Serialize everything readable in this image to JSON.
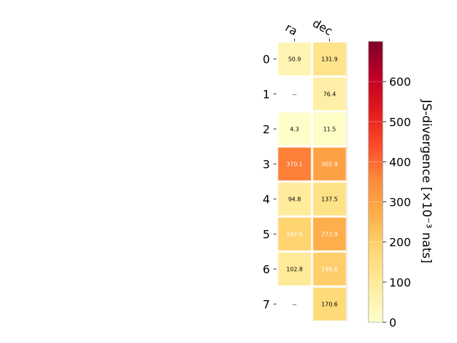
{
  "chart_data": {
    "type": "heatmap",
    "x_categories": [
      "ra",
      "dec"
    ],
    "y_categories": [
      "0",
      "1",
      "2",
      "3",
      "4",
      "5",
      "6",
      "7"
    ],
    "values": [
      [
        50.9,
        131.9
      ],
      [
        null,
        76.4
      ],
      [
        4.3,
        11.5
      ],
      [
        370.1,
        302.9
      ],
      [
        94.8,
        137.5
      ],
      [
        187.6,
        272.9
      ],
      [
        102.8,
        198.6
      ],
      [
        null,
        170.6
      ]
    ],
    "cell_labels": [
      [
        "50.9",
        "131.9"
      ],
      [
        "--",
        "76.4"
      ],
      [
        "4.3",
        "11.5"
      ],
      [
        "370.1",
        "302.9"
      ],
      [
        "94.8",
        "137.5"
      ],
      [
        "187.6",
        "272.9"
      ],
      [
        "102.8",
        "198.6"
      ],
      [
        "--",
        "170.6"
      ]
    ],
    "colormap": "YlOrRd",
    "colormap_stops": [
      "#ffffcc",
      "#ffeda0",
      "#fed976",
      "#feb24c",
      "#fd8d3c",
      "#fc4e2a",
      "#e31a1c",
      "#bd0026",
      "#800026"
    ],
    "vmin": 0,
    "vmax": 700,
    "colorbar": {
      "label": "JS-divergence [×10⁻³ nats]",
      "ticks": [
        0,
        100,
        200,
        300,
        400,
        500,
        600
      ],
      "tick_labels": [
        "0",
        "100",
        "200",
        "300",
        "400",
        "500",
        "600"
      ]
    }
  }
}
